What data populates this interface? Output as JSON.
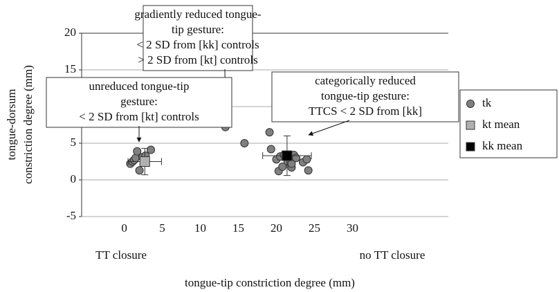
{
  "chart_data": {
    "type": "scatter",
    "x_label": "tongue-tip constriction degree (mm)",
    "y_label": [
      "tongue-dorsum",
      "constriction degree (mm)"
    ],
    "x_end_labels": [
      "TT closure",
      "no TT closure"
    ],
    "xlim": [
      -5.6,
      42.6
    ],
    "ylim": [
      -5,
      20
    ],
    "xticks": [
      0,
      5,
      10,
      15,
      20,
      25,
      30
    ],
    "yticks": [
      -5,
      0,
      5,
      10,
      15,
      20
    ],
    "grid": true,
    "series": [
      {
        "name": "tk",
        "marker": "circle",
        "color": "#808080",
        "x": [
          0.8,
          1.1,
          1.3,
          1.5,
          1.7,
          2.0,
          2.4,
          2.8,
          3.5,
          13.3,
          15.8,
          19.1,
          19.3,
          20.0,
          20.3,
          20.5,
          20.8,
          21.0,
          21.5,
          22.0,
          22.0,
          22.3,
          22.6,
          23.5,
          24.0,
          24.2
        ],
        "y": [
          2.2,
          2.5,
          2.7,
          3.0,
          3.9,
          1.3,
          3.1,
          3.3,
          4.1,
          7.2,
          5.0,
          6.5,
          4.2,
          2.8,
          1.2,
          3.2,
          1.8,
          3.4,
          2.5,
          1.7,
          2.2,
          3.4,
          3.0,
          2.4,
          2.8,
          1.3
        ]
      },
      {
        "name": "kt mean",
        "marker": "square",
        "color": "#b0b0b0",
        "x": [
          2.7
        ],
        "y": [
          2.5
        ],
        "xerr": [
          2.2
        ],
        "yerr": [
          1.8
        ]
      },
      {
        "name": "kk mean",
        "marker": "square",
        "color": "#000000",
        "x": [
          21.4
        ],
        "y": [
          3.3
        ],
        "xerr": [
          3.2
        ],
        "yerr": [
          2.7
        ]
      }
    ],
    "annotations": [
      {
        "lines": [
          "gradiently reduced tongue-",
          "tip gesture:",
          "< 2 SD from [kk] controls",
          "> 2 SD from [kt] controls"
        ]
      },
      {
        "lines": [
          "unreduced tongue-tip",
          "gesture:",
          "< 2 SD from [kt] controls"
        ]
      },
      {
        "lines": [
          "categorically reduced",
          "tongue-tip gesture:",
          "TTCS < 2 SD from [kk]"
        ]
      }
    ]
  }
}
